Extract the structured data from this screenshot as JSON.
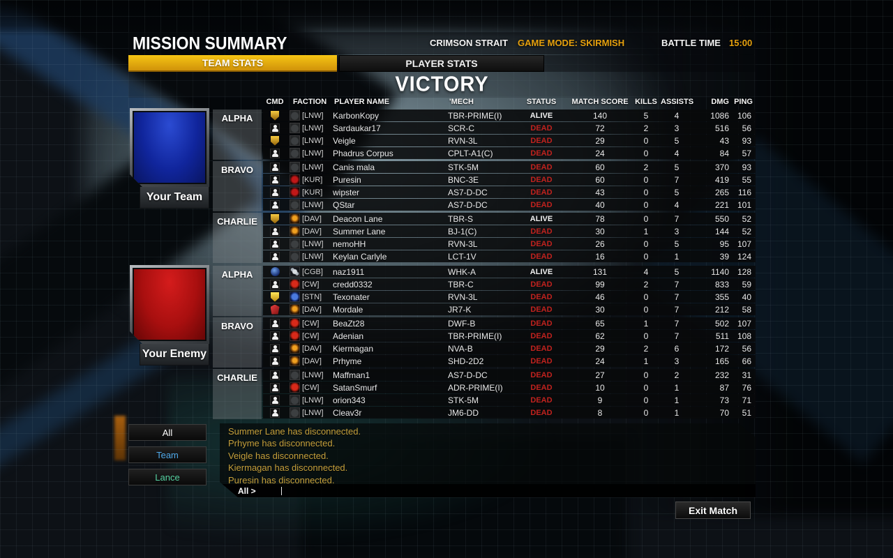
{
  "header": {
    "title": "MISSION SUMMARY",
    "map": "CRIMSON STRAIT",
    "mode": "GAME MODE: SKIRMISH",
    "battle_time_label": "BATTLE TIME",
    "battle_time": "15:00"
  },
  "tabs": [
    {
      "label": "TEAM STATS",
      "active": true
    },
    {
      "label": "PLAYER STATS",
      "active": false
    }
  ],
  "result": "VICTORY",
  "columns": [
    "CMD",
    "FACTION",
    "PLAYER NAME",
    "'MECH",
    "STATUS",
    "MATCH SCORE",
    "KILLS",
    "ASSISTS",
    "DMG",
    "PING"
  ],
  "colors": {
    "accent": "#e5a00d",
    "dead": "#c1221e",
    "team_banner": "#10259c",
    "enemy_banner": "#a80f0f",
    "team-filter": "#4fa8e8",
    "lance-filter": "#56d2a2",
    "chat-gold": "#c5a03c"
  },
  "teams": [
    {
      "banner_label": "Your Team",
      "banner": "blue",
      "lances": [
        {
          "name": "ALPHA",
          "players": [
            {
              "cmd": "badge-gold",
              "faction": "lnw",
              "tag": "[LNW]",
              "name": "KarbonKopy",
              "mech": "TBR-PRIME(I)",
              "status": "ALIVE",
              "score": "140",
              "kills": "5",
              "assists": "4",
              "dmg": "1086",
              "ping": "106"
            },
            {
              "cmd": "person",
              "faction": "lnw",
              "tag": "[LNW]",
              "name": "Sardaukar17",
              "mech": "SCR-C",
              "status": "DEAD",
              "score": "72",
              "kills": "2",
              "assists": "3",
              "dmg": "516",
              "ping": "56"
            },
            {
              "cmd": "badge-gold",
              "faction": "lnw",
              "tag": "[LNW]",
              "name": "Veigle",
              "mech": "RVN-3L",
              "status": "DEAD",
              "score": "29",
              "kills": "0",
              "assists": "5",
              "dmg": "43",
              "ping": "93"
            },
            {
              "cmd": "person",
              "faction": "lnw",
              "tag": "[LNW]",
              "name": "Phadrus Corpus",
              "mech": "CPLT-A1(C)",
              "status": "DEAD",
              "score": "24",
              "kills": "0",
              "assists": "4",
              "dmg": "84",
              "ping": "57"
            }
          ]
        },
        {
          "name": "BRAVO",
          "players": [
            {
              "cmd": "person",
              "faction": "lnw",
              "tag": "[LNW]",
              "name": "Canis mala",
              "mech": "STK-5M",
              "status": "DEAD",
              "score": "60",
              "kills": "2",
              "assists": "5",
              "dmg": "370",
              "ping": "93"
            },
            {
              "cmd": "person",
              "faction": "kur",
              "tag": "[KUR]",
              "name": "Puresin",
              "mech": "BNC-3E",
              "status": "DEAD",
              "score": "60",
              "kills": "0",
              "assists": "7",
              "dmg": "419",
              "ping": "55"
            },
            {
              "cmd": "person",
              "faction": "kur",
              "tag": "[KUR]",
              "name": "wipster",
              "mech": "AS7-D-DC",
              "status": "DEAD",
              "score": "43",
              "kills": "0",
              "assists": "5",
              "dmg": "265",
              "ping": "116"
            },
            {
              "cmd": "person",
              "faction": "lnw",
              "tag": "[LNW]",
              "name": "QStar",
              "mech": "AS7-D-DC",
              "status": "DEAD",
              "score": "40",
              "kills": "0",
              "assists": "4",
              "dmg": "221",
              "ping": "101"
            }
          ]
        },
        {
          "name": "CHARLIE",
          "players": [
            {
              "cmd": "badge-gold",
              "faction": "dav",
              "tag": "[DAV]",
              "name": "Deacon Lane",
              "mech": "TBR-S",
              "status": "ALIVE",
              "score": "78",
              "kills": "0",
              "assists": "7",
              "dmg": "550",
              "ping": "52"
            },
            {
              "cmd": "person",
              "faction": "dav",
              "tag": "[DAV]",
              "name": "Summer Lane",
              "mech": "BJ-1(C)",
              "status": "DEAD",
              "score": "30",
              "kills": "1",
              "assists": "3",
              "dmg": "144",
              "ping": "52"
            },
            {
              "cmd": "person",
              "faction": "lnw",
              "tag": "[LNW]",
              "name": "nemoHH",
              "mech": "RVN-3L",
              "status": "DEAD",
              "score": "26",
              "kills": "0",
              "assists": "5",
              "dmg": "95",
              "ping": "107"
            },
            {
              "cmd": "person",
              "faction": "lnw",
              "tag": "[LNW]",
              "name": "Keylan Carlyle",
              "mech": "LCT-1V",
              "status": "DEAD",
              "score": "16",
              "kills": "0",
              "assists": "1",
              "dmg": "39",
              "ping": "124"
            }
          ]
        }
      ]
    },
    {
      "banner_label": "Your Enemy",
      "banner": "red",
      "lances": [
        {
          "name": "ALPHA",
          "players": [
            {
              "cmd": "badge-blue",
              "faction": "cgb",
              "tag": "[CGB]",
              "name": "naz1911",
              "mech": "WHK-A",
              "status": "ALIVE",
              "score": "131",
              "kills": "4",
              "assists": "5",
              "dmg": "1140",
              "ping": "128"
            },
            {
              "cmd": "person",
              "faction": "cw",
              "tag": "[CW]",
              "name": "credd0332",
              "mech": "TBR-C",
              "status": "DEAD",
              "score": "99",
              "kills": "2",
              "assists": "7",
              "dmg": "833",
              "ping": "59"
            },
            {
              "cmd": "badge-yellow",
              "faction": "stn",
              "tag": "[STN]",
              "name": "Texonater",
              "mech": "RVN-3L",
              "status": "DEAD",
              "score": "46",
              "kills": "0",
              "assists": "7",
              "dmg": "355",
              "ping": "40"
            },
            {
              "cmd": "badge-red",
              "faction": "dav",
              "tag": "[DAV]",
              "name": "Mordale",
              "mech": "JR7-K",
              "status": "DEAD",
              "score": "30",
              "kills": "0",
              "assists": "7",
              "dmg": "212",
              "ping": "58"
            }
          ]
        },
        {
          "name": "BRAVO",
          "players": [
            {
              "cmd": "person",
              "faction": "cw",
              "tag": "[CW]",
              "name": "BeaZt28",
              "mech": "DWF-B",
              "status": "DEAD",
              "score": "65",
              "kills": "1",
              "assists": "7",
              "dmg": "502",
              "ping": "107"
            },
            {
              "cmd": "person",
              "faction": "cw",
              "tag": "[CW]",
              "name": "Adenian",
              "mech": "TBR-PRIME(I)",
              "status": "DEAD",
              "score": "62",
              "kills": "0",
              "assists": "7",
              "dmg": "511",
              "ping": "108"
            },
            {
              "cmd": "person",
              "faction": "dav",
              "tag": "[DAV]",
              "name": "Kiermagan",
              "mech": "NVA-B",
              "status": "DEAD",
              "score": "29",
              "kills": "2",
              "assists": "6",
              "dmg": "172",
              "ping": "56"
            },
            {
              "cmd": "person",
              "faction": "dav",
              "tag": "[DAV]",
              "name": "Prhyme",
              "mech": "SHD-2D2",
              "status": "DEAD",
              "score": "24",
              "kills": "1",
              "assists": "3",
              "dmg": "165",
              "ping": "66"
            }
          ]
        },
        {
          "name": "CHARLIE",
          "players": [
            {
              "cmd": "person",
              "faction": "lnw",
              "tag": "[LNW]",
              "name": "Maffman1",
              "mech": "AS7-D-DC",
              "status": "DEAD",
              "score": "27",
              "kills": "0",
              "assists": "2",
              "dmg": "232",
              "ping": "31"
            },
            {
              "cmd": "person",
              "faction": "cw",
              "tag": "[CW]",
              "name": "SatanSmurf",
              "mech": "ADR-PRIME(I)",
              "status": "DEAD",
              "score": "10",
              "kills": "0",
              "assists": "1",
              "dmg": "87",
              "ping": "76"
            },
            {
              "cmd": "person",
              "faction": "lnw",
              "tag": "[LNW]",
              "name": "orion343",
              "mech": "STK-5M",
              "status": "DEAD",
              "score": "9",
              "kills": "0",
              "assists": "1",
              "dmg": "73",
              "ping": "71"
            },
            {
              "cmd": "person",
              "faction": "lnw",
              "tag": "[LNW]",
              "name": "Cleav3r",
              "mech": "JM6-DD",
              "status": "DEAD",
              "score": "8",
              "kills": "0",
              "assists": "1",
              "dmg": "70",
              "ping": "51"
            }
          ]
        }
      ]
    }
  ],
  "chat": {
    "filters": [
      {
        "label": "All"
      },
      {
        "label": "Team"
      },
      {
        "label": "Lance"
      }
    ],
    "messages": [
      "Summer Lane has disconnected.",
      "Prhyme has disconnected.",
      "Veigle has disconnected.",
      "Kiermagan has disconnected.",
      "Puresin has disconnected."
    ],
    "input_prefix": "All >"
  },
  "exit_button": "Exit Match"
}
